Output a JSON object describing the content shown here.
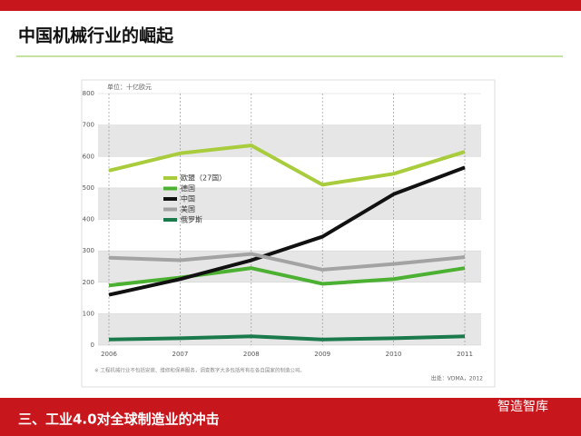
{
  "slide": {
    "title": "中国机械行业的崛起",
    "section": "三、工业4.0对全球制造业的冲击",
    "watermark": "智造智库"
  },
  "chart_data": {
    "type": "line",
    "unit": "单位：十亿欧元",
    "categories": [
      "2006",
      "2007",
      "2008",
      "2009",
      "2010",
      "2011"
    ],
    "series": [
      {
        "name": "欧盟（27国）",
        "color": "#a8cc3c",
        "values": [
          555,
          610,
          635,
          510,
          545,
          615
        ]
      },
      {
        "name": "德国",
        "color": "#4cb032",
        "values": [
          190,
          215,
          245,
          195,
          210,
          245
        ]
      },
      {
        "name": "中国",
        "color": "#111111",
        "values": [
          160,
          210,
          270,
          345,
          480,
          565
        ]
      },
      {
        "name": "美国",
        "color": "#a3a3a3",
        "values": [
          278,
          270,
          290,
          240,
          258,
          280
        ]
      },
      {
        "name": "俄罗斯",
        "color": "#1b7a4c",
        "values": [
          18,
          22,
          28,
          18,
          22,
          28
        ]
      }
    ],
    "ylim": [
      0,
      800
    ],
    "yticks": [
      0,
      100,
      200,
      300,
      400,
      500,
      600,
      700,
      800
    ],
    "grid": true,
    "legend": "upper-left",
    "footnote": "※ 工程机械行业不包括安装、维修和保养服务，调查数字大多包括所有在各自国家的制造公司。",
    "source": "出处：VDMA，2012"
  }
}
